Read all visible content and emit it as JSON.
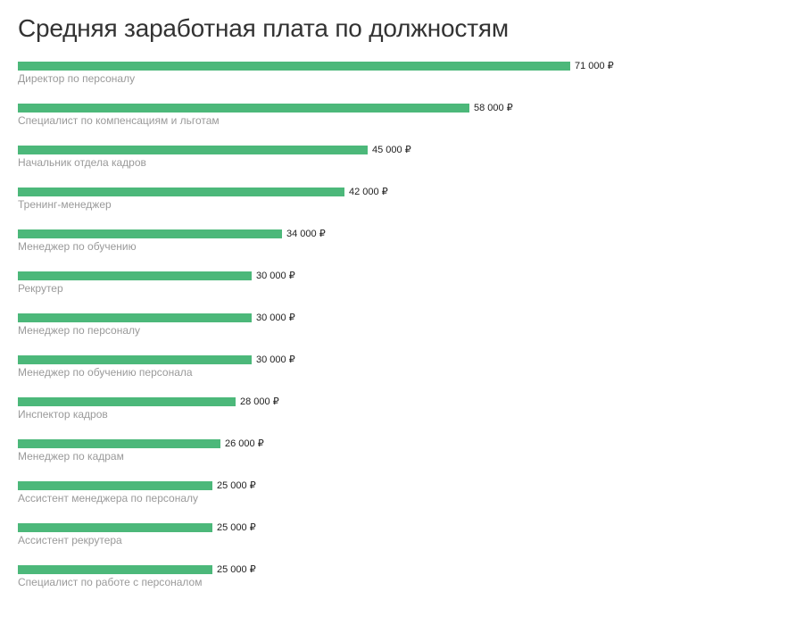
{
  "chart_data": {
    "type": "bar",
    "orientation": "horizontal",
    "title": "Средняя заработная плата по должностям",
    "currency_symbol": "₽",
    "bar_color": "#4cb87a",
    "categories": [
      "Директор по персоналу",
      "Специалист по компенсациям и льготам",
      "Начальник отдела кадров",
      "Тренинг-менеджер",
      "Менеджер по обучению",
      "Рекрутер",
      "Менеджер по персоналу",
      "Менеджер по обучению персонала",
      "Инспектор кадров",
      "Менеджер по кадрам",
      "Ассистент менеджера по персоналу",
      "Ассистент рекрутера",
      "Специалист по работе с персоналом"
    ],
    "values": [
      71000,
      58000,
      45000,
      42000,
      34000,
      30000,
      30000,
      30000,
      28000,
      26000,
      25000,
      25000,
      25000
    ],
    "value_labels": [
      "71 000 ₽",
      "58 000 ₽",
      "45 000 ₽",
      "42 000 ₽",
      "34 000 ₽",
      "30 000 ₽",
      "30 000 ₽",
      "30 000 ₽",
      "28 000 ₽",
      "26 000 ₽",
      "25 000 ₽",
      "25 000 ₽",
      "25 000 ₽"
    ]
  }
}
